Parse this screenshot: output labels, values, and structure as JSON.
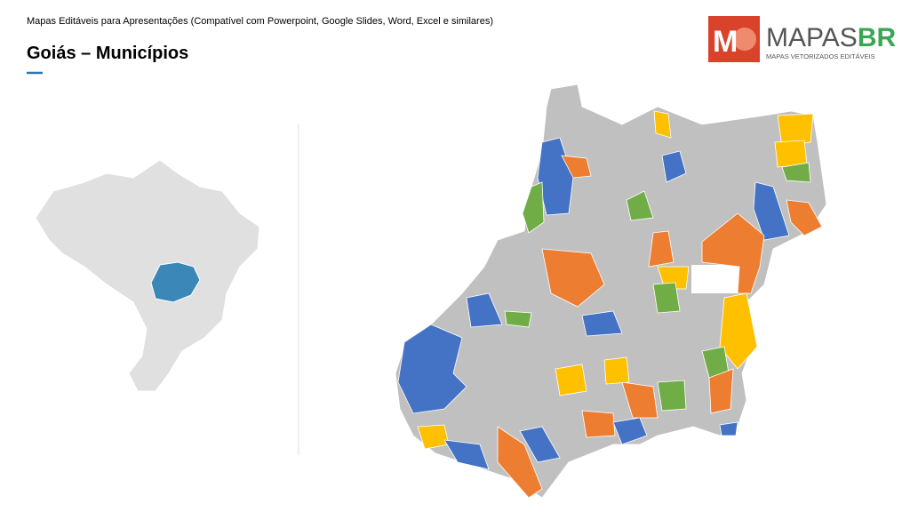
{
  "header": {
    "caption": "Mapas Editáveis para Apresentações (Compatível com Powerpoint, Google Slides, Word, Excel e similares)",
    "title": "Goiás – Municípios"
  },
  "logo": {
    "icon_letter": "M",
    "name_part1": "MAPAS",
    "name_part2": "BR",
    "tagline": "MAPAS VETORIZADOS EDITÁVEIS"
  }
}
